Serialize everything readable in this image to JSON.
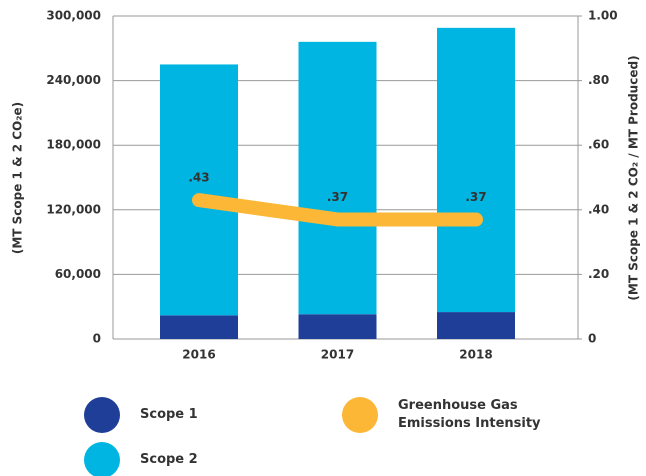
{
  "chart_data": {
    "type": "bar",
    "y_label": "(MT Scope 1 & 2 CO₂e)",
    "y2_label": "(MT Scope 1 & 2 CO₂ / MT Produced)",
    "categories": [
      "2016",
      "2017",
      "2018"
    ],
    "series": [
      {
        "name": "Scope 1",
        "color": "#1f3e97",
        "values": [
          22000,
          23000,
          25000
        ]
      },
      {
        "name": "Scope 2",
        "color": "#00b5e2",
        "values": [
          233000,
          253000,
          264000
        ]
      },
      {
        "name": "Greenhouse Gas Emissions Intensity",
        "color": "#fbb735",
        "type": "line",
        "axis": "y2",
        "values": [
          0.43,
          0.37,
          0.37
        ],
        "value_labels": [
          ".43",
          ".37",
          ".37"
        ]
      }
    ],
    "ylim": [
      0,
      300000
    ],
    "yticks": [
      0,
      {
        "value": 60000,
        "label": "60,000"
      },
      {
        "value": 120000,
        "label": "120,000"
      },
      {
        "value": 180000,
        "label": "180,000"
      },
      {
        "value": 240000,
        "label": "240,000"
      },
      {
        "value": 300000,
        "label": "300,000"
      }
    ],
    "y2lim": [
      0,
      1
    ],
    "y2ticks": [
      0,
      {
        "value": 0.2,
        "label": ".20"
      },
      {
        "value": 0.4,
        "label": ".40"
      },
      {
        "value": 0.6,
        "label": ".60"
      },
      {
        "value": 0.8,
        "label": ".80"
      },
      {
        "value": 1,
        "label": "1.00"
      }
    ],
    "stacked": true,
    "grid": true
  }
}
